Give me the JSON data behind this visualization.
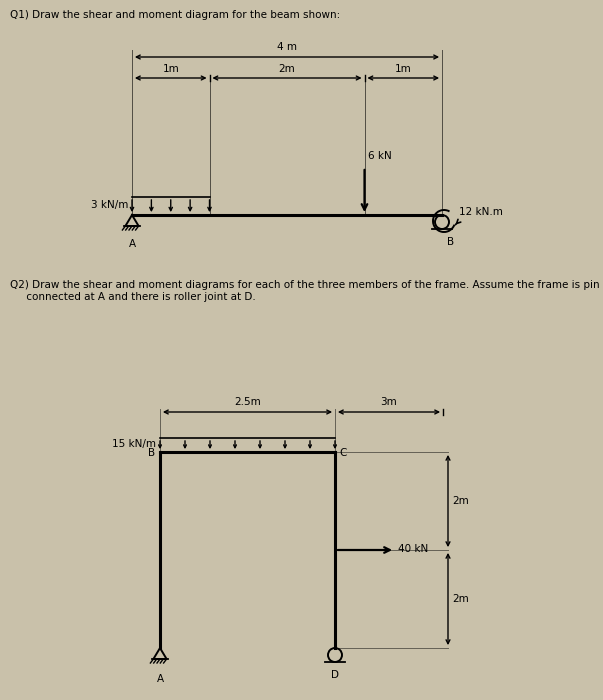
{
  "bg_color": "#c9c1aa",
  "text_color": "#000000",
  "q1_title": "Q1) Draw the shear and moment diagram for the beam shown:",
  "q2_title_line1": "Q2) Draw the shear and moment diagrams for each of the three members of the frame. Assume the frame is pin",
  "q2_title_line2": "     connected at A and there is roller joint at D.",
  "q1": {
    "dim1_label": "4 m",
    "dim2_label": "1m",
    "dim3_label": "2m",
    "dim4_label": "1m",
    "udl_label": "3 kN/m",
    "point_load_label": "6 kN",
    "moment_label": "12 kN.m",
    "label_A": "A",
    "label_B": "B"
  },
  "q2": {
    "dim1_label": "2.5m",
    "dim2_label": "3m",
    "udl_label": "15 kN/m",
    "point_load_label": "40 kN",
    "dim_2m_top": "2m",
    "dim_2m_bot": "2m",
    "label_A": "A",
    "label_B": "B",
    "label_C": "C",
    "label_D": "D"
  }
}
